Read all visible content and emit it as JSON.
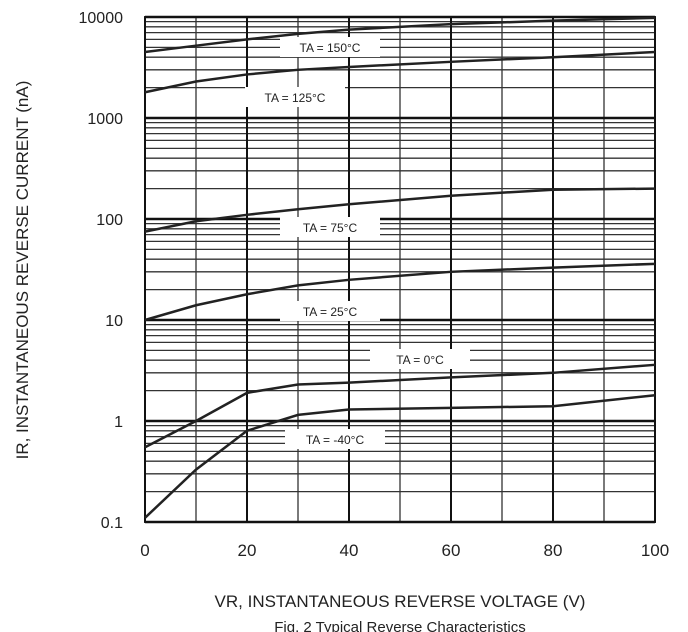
{
  "chart_data": {
    "type": "line",
    "xlabel": "VR, INSTANTANEOUS REVERSE VOLTAGE (V)",
    "ylabel": "IR, INSTANTANEOUS REVERSE CURRENT (nA)",
    "caption": "Fig. 2 Typical Reverse Characteristics",
    "x": [
      0,
      10,
      20,
      30,
      40,
      60,
      80,
      100
    ],
    "xlim": [
      0,
      100
    ],
    "xticks": [
      0,
      20,
      40,
      60,
      80,
      100
    ],
    "ylim": [
      0.1,
      10000
    ],
    "yticks": [
      0.1,
      1,
      10,
      100,
      1000,
      10000
    ],
    "yscale": "log",
    "grid": true,
    "series": [
      {
        "name": "TA = 150°C",
        "color": "#222222",
        "values": [
          4500,
          5200,
          6000,
          6800,
          7500,
          8500,
          9200,
          9800
        ]
      },
      {
        "name": "TA = 125°C",
        "color": "#222222",
        "values": [
          1800,
          2300,
          2700,
          3000,
          3200,
          3600,
          4000,
          4500
        ]
      },
      {
        "name": "TA = 75°C",
        "color": "#222222",
        "values": [
          75,
          95,
          110,
          125,
          140,
          170,
          195,
          200
        ]
      },
      {
        "name": "TA = 25°C",
        "color": "#222222",
        "values": [
          10,
          14,
          18,
          22,
          25,
          30,
          33,
          36
        ]
      },
      {
        "name": "TA = 0°C",
        "color": "#222222",
        "values": [
          0.55,
          1.0,
          1.9,
          2.3,
          2.4,
          2.7,
          3.0,
          3.6
        ]
      },
      {
        "name": "TA = -40°C",
        "color": "#222222",
        "values": [
          0.11,
          0.33,
          0.8,
          1.15,
          1.3,
          1.35,
          1.4,
          1.8
        ]
      }
    ]
  }
}
